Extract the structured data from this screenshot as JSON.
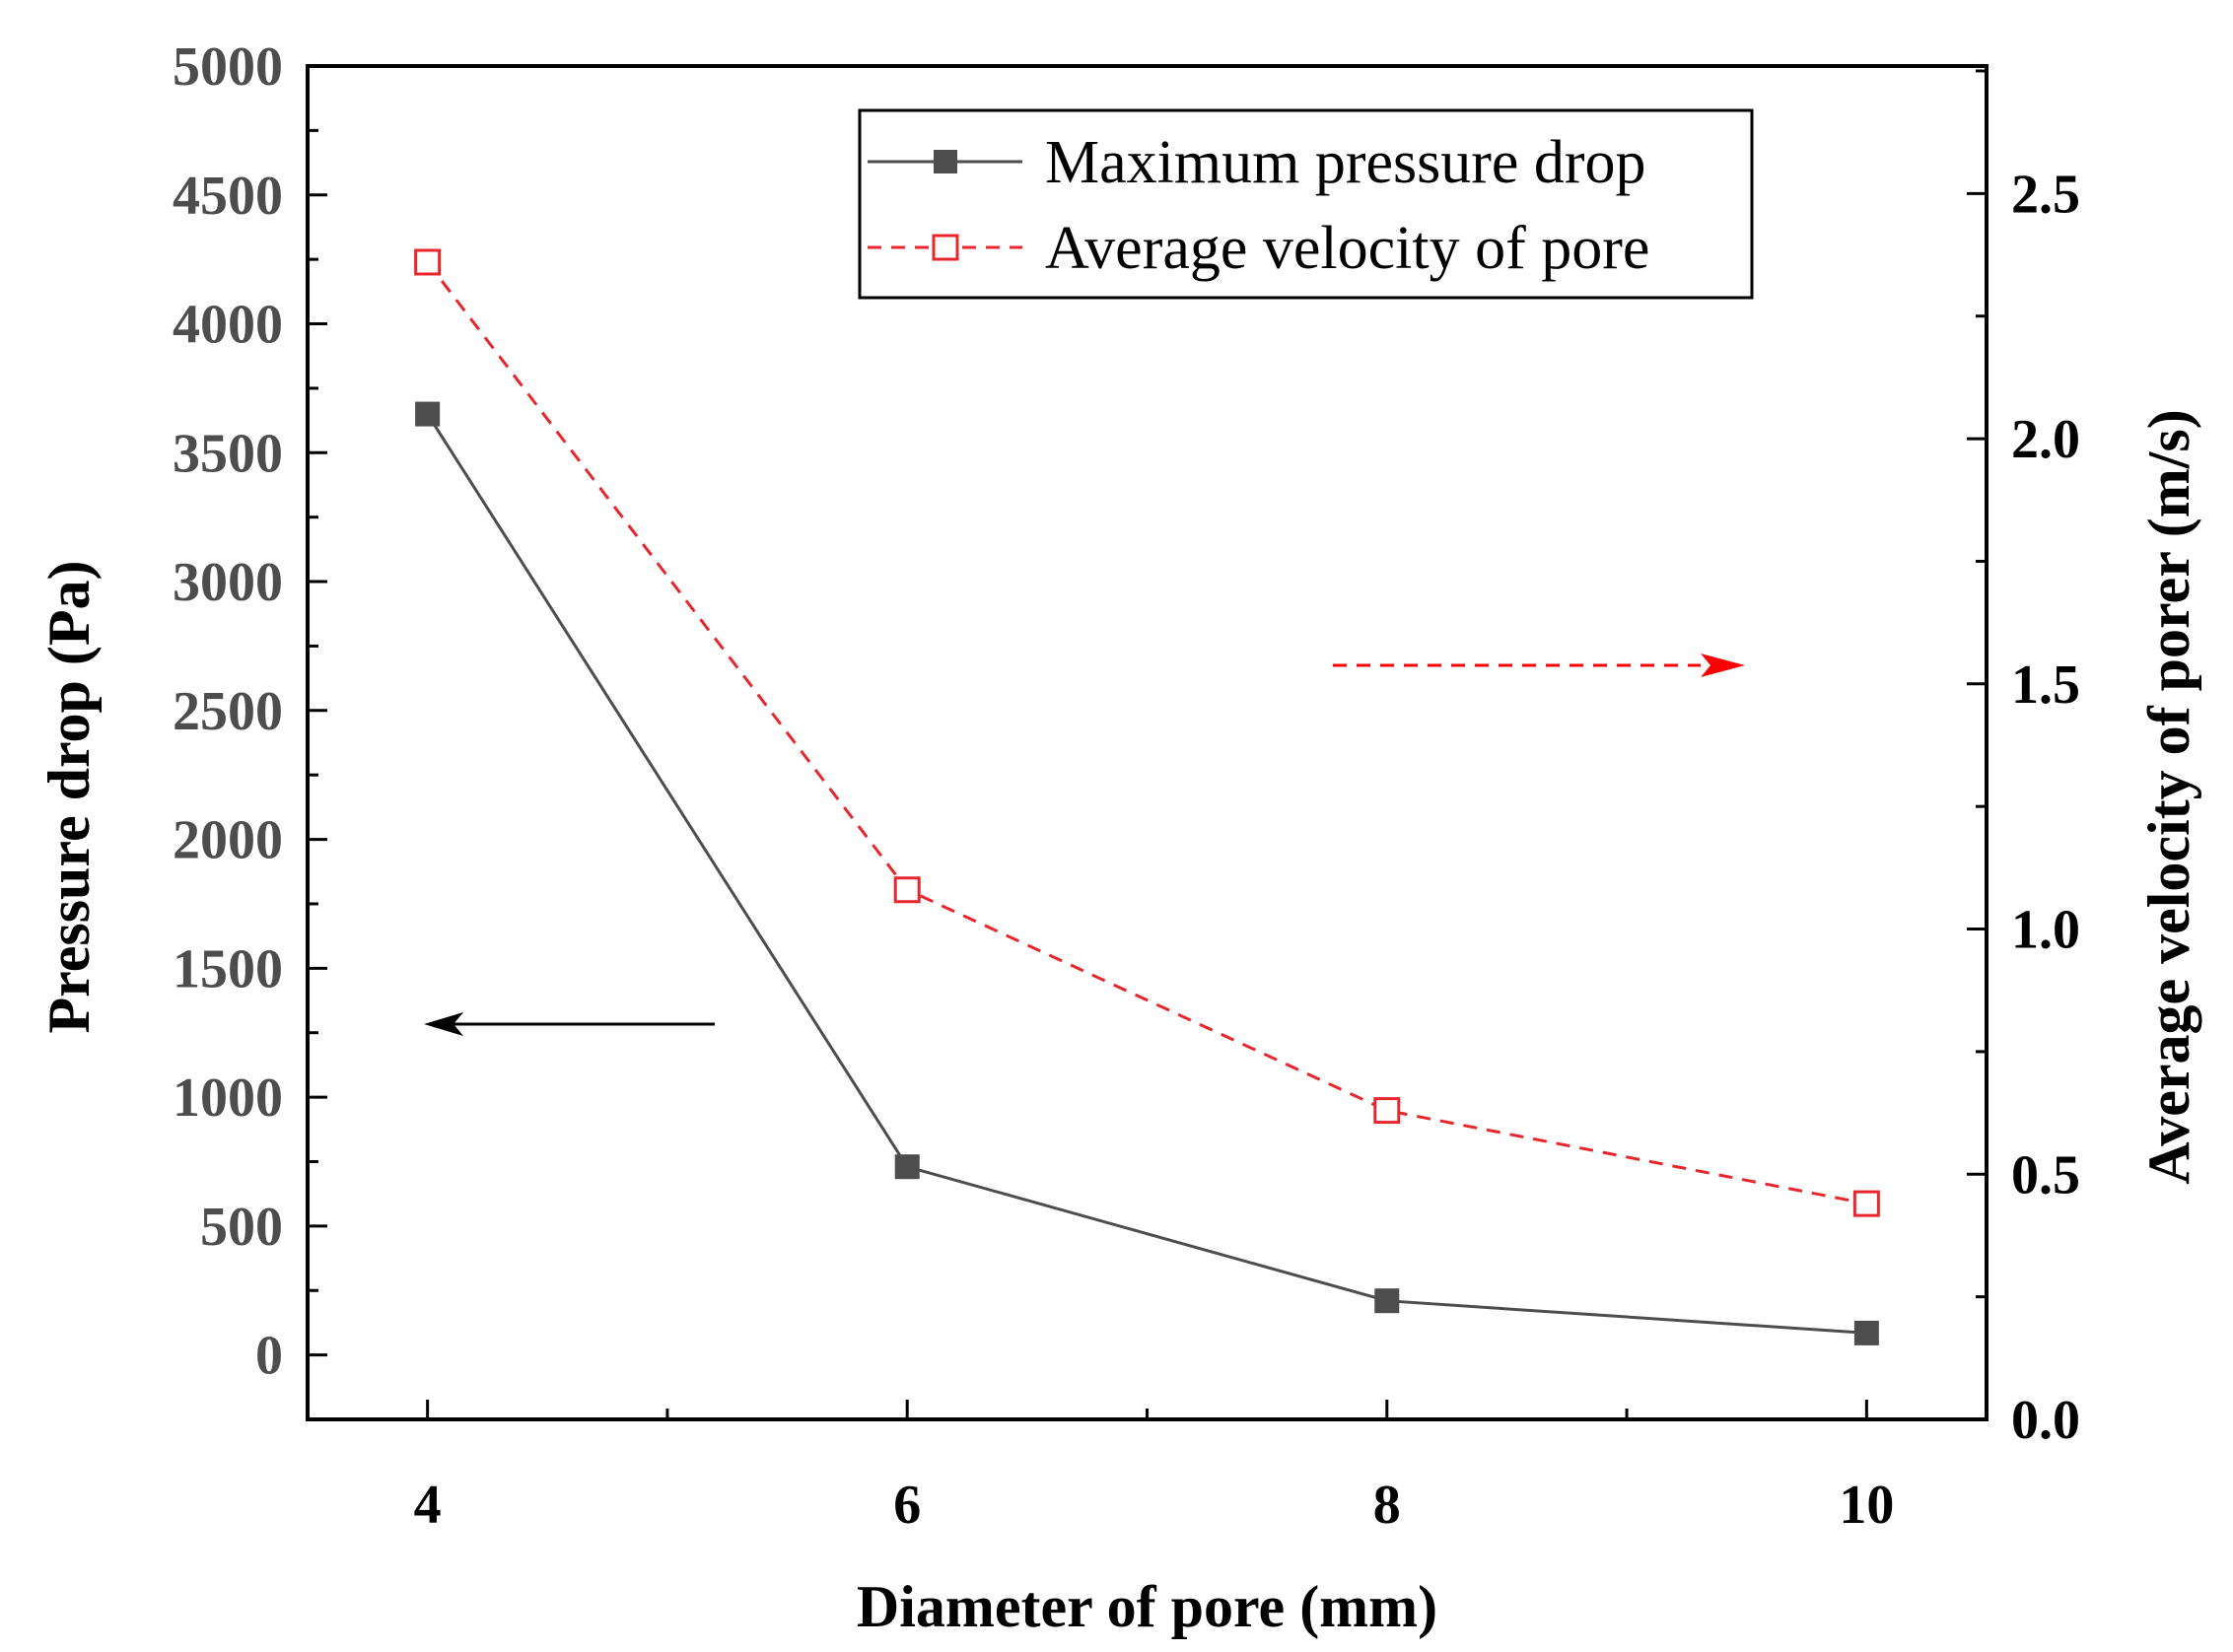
{
  "chart_data": {
    "type": "line",
    "xlabel": "Diameter of pore (mm)",
    "ylabel_left": "Pressure drop (Pa)",
    "ylabel_right": "Average velocity of porer (m/s)",
    "x": [
      4,
      6,
      8,
      10
    ],
    "x_ticks": [
      4,
      6,
      8,
      10
    ],
    "x_tick_labels": [
      "4",
      "6",
      "8",
      "10"
    ],
    "xlim": [
      3.5,
      10.5
    ],
    "ylim_left": [
      -250,
      5000
    ],
    "ylim_right": [
      0,
      2.76
    ],
    "y_ticks_left": [
      "0",
      "500",
      "1000",
      "1500",
      "2000",
      "2500",
      "3000",
      "3500",
      "4000",
      "4500",
      "5000"
    ],
    "y_ticks_right": [
      "0.0",
      "0.5",
      "1.0",
      "1.5",
      "2.0",
      "2.5"
    ],
    "series": [
      {
        "name": "Maximum pressure drop",
        "axis": "left",
        "values": [
          3650,
          730,
          210,
          85
        ],
        "color": "#4d4d4d",
        "line": "solid",
        "marker": "filled-square"
      },
      {
        "name": "Average velocity of pore",
        "axis": "right",
        "values": [
          2.36,
          1.08,
          0.63,
          0.44
        ],
        "color": "#e8262b",
        "line": "dashed",
        "marker": "open-square"
      }
    ],
    "annotations": [
      {
        "kind": "arrow-left",
        "meaning": "series reads on left axis",
        "color": "#000000"
      },
      {
        "kind": "arrow-right",
        "meaning": "series reads on right axis",
        "color": "#ff0000"
      }
    ],
    "legend_position": "top-right",
    "grid": false
  }
}
